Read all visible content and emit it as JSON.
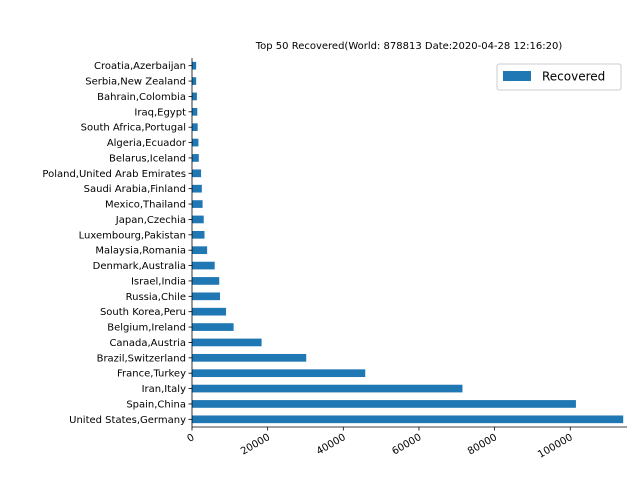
{
  "chart_data": {
    "type": "bar",
    "orientation": "horizontal",
    "title": "Top 50 Recovered(World: 878813 Date:2020-04-28 12:16:20)",
    "xlabel": "",
    "ylabel": "",
    "xlim": [
      0,
      115000
    ],
    "x_ticks": [
      0,
      20000,
      40000,
      60000,
      80000,
      100000
    ],
    "x_tick_labels": [
      "0",
      "20000",
      "40000",
      "60000",
      "80000",
      "100000"
    ],
    "grid": false,
    "legend_position": "top-right",
    "bar_color": "#1f77b4",
    "categories": [
      "United States,Germany",
      "Spain,China",
      "Iran,Italy",
      "France,Turkey",
      "Brazil,Switzerland",
      "Canada,Austria",
      "Belgium,Ireland",
      "South Korea,Peru",
      "Russia,Chile",
      "Israel,India",
      "Denmark,Australia",
      "Malaysia,Romania",
      "Luxembourg,Pakistan",
      "Japan,Czechia",
      "Mexico,Thailand",
      "Saudi Arabia,Finland",
      "Poland,United Arab Emirates",
      "Belarus,Iceland",
      "Algeria,Ecuador",
      "South Africa,Portugal",
      "Iraq,Egypt",
      "Bahrain,Colombia",
      "Serbia,New Zealand",
      "Croatia,Azerbaijan"
    ],
    "series": [
      {
        "name": "Recovered",
        "values": [
          114000,
          101500,
          71500,
          45800,
          30200,
          18400,
          11000,
          9000,
          7400,
          7200,
          6000,
          4000,
          3300,
          3100,
          2800,
          2600,
          2400,
          1800,
          1700,
          1500,
          1400,
          1300,
          1100,
          1100
        ]
      }
    ]
  }
}
